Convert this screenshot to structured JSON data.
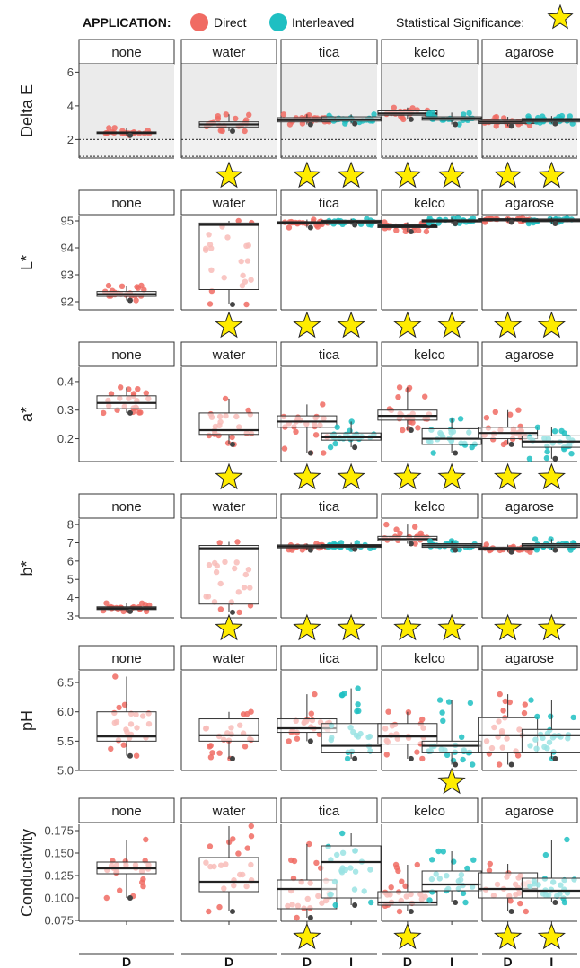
{
  "legend": {
    "title": "APPLICATION:",
    "items": [
      {
        "label": "Direct",
        "color": "#f06b63"
      },
      {
        "label": "Interleaved",
        "color": "#1fbfc2"
      }
    ],
    "significance_label": "Statistical Significance:",
    "significance_icon": "star-icon",
    "star_color": "#ffec00"
  },
  "chart_data": {
    "type": "box",
    "facets": [
      "none",
      "water",
      "tica",
      "kelco",
      "agarose"
    ],
    "x_categories": {
      "none": [
        "D"
      ],
      "water": [
        "D"
      ],
      "tica": [
        "D",
        "I"
      ],
      "kelco": [
        "D",
        "I"
      ],
      "agarose": [
        "D",
        "I"
      ]
    },
    "x_tick_labels": [
      "D",
      "D",
      "D",
      "I",
      "D",
      "I",
      "D",
      "I"
    ],
    "panels": [
      {
        "ylabel": "Delta E",
        "ylim": [
          0.9,
          6.5
        ],
        "yticks": [
          "6",
          "4",
          "2"
        ],
        "ytick_values": [
          6,
          4,
          2
        ],
        "grey_background": true,
        "reference_lines": [
          1,
          2
        ],
        "boxes": {
          "none": {
            "D": {
              "min": 2.25,
              "q1": 2.35,
              "median": 2.4,
              "q3": 2.45,
              "max": 2.7
            }
          },
          "water": {
            "D": {
              "min": 2.5,
              "q1": 2.75,
              "median": 2.9,
              "q3": 3.05,
              "max": 3.5
            }
          },
          "tica": {
            "D": {
              "min": 2.9,
              "q1": 3.05,
              "median": 3.15,
              "q3": 3.3,
              "max": 3.5
            },
            "I": {
              "min": 2.95,
              "q1": 3.1,
              "median": 3.2,
              "q3": 3.35,
              "max": 3.5
            }
          },
          "kelco": {
            "D": {
              "min": 3.2,
              "q1": 3.45,
              "median": 3.55,
              "q3": 3.7,
              "max": 3.9
            },
            "I": {
              "min": 2.9,
              "q1": 3.15,
              "median": 3.25,
              "q3": 3.35,
              "max": 3.6
            }
          },
          "agarose": {
            "D": {
              "min": 2.8,
              "q1": 2.95,
              "median": 3.05,
              "q3": 3.15,
              "max": 3.35
            },
            "I": {
              "min": 2.95,
              "q1": 3.05,
              "median": 3.15,
              "q3": 3.25,
              "max": 3.4
            }
          }
        },
        "significance": {
          "none": [],
          "water": [
            "D"
          ],
          "tica": [
            "D",
            "I"
          ],
          "kelco": [
            "D",
            "I"
          ],
          "agarose": [
            "D",
            "I"
          ]
        }
      },
      {
        "ylabel": "L*",
        "ylim": [
          91.7,
          95.2
        ],
        "yticks": [
          "95",
          "94",
          "93",
          "92"
        ],
        "ytick_values": [
          95,
          94,
          93,
          92
        ],
        "grey_background": false,
        "reference_lines": [],
        "boxes": {
          "none": {
            "D": {
              "min": 92.05,
              "q1": 92.2,
              "median": 92.28,
              "q3": 92.38,
              "max": 92.6
            }
          },
          "water": {
            "D": {
              "min": 91.9,
              "q1": 92.45,
              "median": 94.85,
              "q3": 94.92,
              "max": 95.0
            }
          },
          "tica": {
            "D": {
              "min": 94.75,
              "q1": 94.88,
              "median": 94.93,
              "q3": 94.97,
              "max": 95.05
            },
            "I": {
              "min": 94.85,
              "q1": 94.92,
              "median": 94.97,
              "q3": 95.02,
              "max": 95.08
            }
          },
          "kelco": {
            "D": {
              "min": 94.6,
              "q1": 94.75,
              "median": 94.8,
              "q3": 94.85,
              "max": 94.95
            },
            "I": {
              "min": 94.9,
              "q1": 94.96,
              "median": 95.0,
              "q3": 95.04,
              "max": 95.12
            }
          },
          "agarose": {
            "D": {
              "min": 94.95,
              "q1": 95.0,
              "median": 95.05,
              "q3": 95.08,
              "max": 95.12
            },
            "I": {
              "min": 94.9,
              "q1": 94.97,
              "median": 95.02,
              "q3": 95.07,
              "max": 95.12
            }
          }
        },
        "significance": {
          "none": [],
          "water": [
            "D"
          ],
          "tica": [
            "D",
            "I"
          ],
          "kelco": [
            "D",
            "I"
          ],
          "agarose": [
            "D",
            "I"
          ]
        }
      },
      {
        "ylabel": "a*",
        "ylim": [
          0.12,
          0.45
        ],
        "yticks": [
          "0.4",
          "0.3",
          "0.2"
        ],
        "ytick_values": [
          0.4,
          0.3,
          0.2
        ],
        "grey_background": false,
        "reference_lines": [],
        "boxes": {
          "none": {
            "D": {
              "min": 0.29,
              "q1": 0.305,
              "median": 0.325,
              "q3": 0.35,
              "max": 0.38
            }
          },
          "water": {
            "D": {
              "min": 0.18,
              "q1": 0.215,
              "median": 0.23,
              "q3": 0.29,
              "max": 0.34
            }
          },
          "tica": {
            "D": {
              "min": 0.15,
              "q1": 0.24,
              "median": 0.26,
              "q3": 0.28,
              "max": 0.32
            },
            "I": {
              "min": 0.17,
              "q1": 0.195,
              "median": 0.205,
              "q3": 0.22,
              "max": 0.26
            }
          },
          "kelco": {
            "D": {
              "min": 0.23,
              "q1": 0.265,
              "median": 0.28,
              "q3": 0.3,
              "max": 0.38
            },
            "I": {
              "min": 0.15,
              "q1": 0.18,
              "median": 0.2,
              "q3": 0.235,
              "max": 0.27
            }
          },
          "agarose": {
            "D": {
              "min": 0.18,
              "q1": 0.2,
              "median": 0.22,
              "q3": 0.24,
              "max": 0.3
            },
            "I": {
              "min": 0.13,
              "q1": 0.17,
              "median": 0.19,
              "q3": 0.21,
              "max": 0.24
            }
          }
        },
        "significance": {
          "none": [],
          "water": [
            "D"
          ],
          "tica": [
            "D",
            "I"
          ],
          "kelco": [
            "D",
            "I"
          ],
          "agarose": [
            "D",
            "I"
          ]
        }
      },
      {
        "ylabel": "b*",
        "ylim": [
          2.9,
          8.3
        ],
        "yticks": [
          "8",
          "7",
          "6",
          "5",
          "4",
          "3"
        ],
        "ytick_values": [
          8,
          7,
          6,
          5,
          4,
          3
        ],
        "grey_background": false,
        "reference_lines": [],
        "boxes": {
          "none": {
            "D": {
              "min": 3.25,
              "q1": 3.35,
              "median": 3.42,
              "q3": 3.5,
              "max": 3.7
            }
          },
          "water": {
            "D": {
              "min": 3.2,
              "q1": 3.65,
              "median": 6.7,
              "q3": 6.85,
              "max": 7.05
            }
          },
          "tica": {
            "D": {
              "min": 6.6,
              "q1": 6.72,
              "median": 6.8,
              "q3": 6.88,
              "max": 6.95
            },
            "I": {
              "min": 6.65,
              "q1": 6.75,
              "median": 6.83,
              "q3": 6.9,
              "max": 7.0
            }
          },
          "kelco": {
            "D": {
              "min": 6.95,
              "q1": 7.1,
              "median": 7.2,
              "q3": 7.35,
              "max": 8.0
            },
            "I": {
              "min": 6.6,
              "q1": 6.75,
              "median": 6.85,
              "q3": 6.95,
              "max": 7.1
            }
          },
          "agarose": {
            "D": {
              "min": 6.5,
              "q1": 6.6,
              "median": 6.68,
              "q3": 6.76,
              "max": 6.9
            },
            "I": {
              "min": 6.6,
              "q1": 6.75,
              "median": 6.85,
              "q3": 6.95,
              "max": 7.2
            }
          }
        },
        "significance": {
          "none": [],
          "water": [
            "D"
          ],
          "tica": [
            "D",
            "I"
          ],
          "kelco": [
            "D",
            "I"
          ],
          "agarose": [
            "D",
            "I"
          ]
        }
      },
      {
        "ylabel": "pH",
        "ylim": [
          5.0,
          6.7
        ],
        "yticks": [
          "6.5",
          "6.0",
          "5.5",
          "5.0"
        ],
        "ytick_values": [
          6.5,
          6.0,
          5.5,
          5.0
        ],
        "grey_background": false,
        "reference_lines": [],
        "boxes": {
          "none": {
            "D": {
              "min": 5.25,
              "q1": 5.5,
              "median": 5.58,
              "q3": 6.0,
              "max": 6.6
            }
          },
          "water": {
            "D": {
              "min": 5.2,
              "q1": 5.5,
              "median": 5.6,
              "q3": 5.88,
              "max": 6.0
            }
          },
          "tica": {
            "D": {
              "min": 5.5,
              "q1": 5.65,
              "median": 5.72,
              "q3": 5.88,
              "max": 6.3
            },
            "I": {
              "min": 5.2,
              "q1": 5.3,
              "median": 5.42,
              "q3": 5.8,
              "max": 6.4
            }
          },
          "kelco": {
            "D": {
              "min": 5.2,
              "q1": 5.45,
              "median": 5.58,
              "q3": 5.8,
              "max": 6.0
            },
            "I": {
              "min": 5.1,
              "q1": 5.3,
              "median": 5.42,
              "q3": 5.5,
              "max": 6.2
            }
          },
          "agarose": {
            "D": {
              "min": 5.1,
              "q1": 5.3,
              "median": 5.6,
              "q3": 5.9,
              "max": 6.3
            },
            "I": {
              "min": 5.2,
              "q1": 5.3,
              "median": 5.6,
              "q3": 5.7,
              "max": 6.2
            }
          }
        },
        "significance": {
          "none": [],
          "water": [],
          "tica": [],
          "kelco": [
            "I"
          ],
          "agarose": []
        }
      },
      {
        "ylabel": "Conductivity",
        "ylim": [
          0.074,
          0.182
        ],
        "yticks": [
          "0.175",
          "0.150",
          "0.125",
          "0.100",
          "0.075"
        ],
        "ytick_values": [
          0.175,
          0.15,
          0.125,
          0.1,
          0.075
        ],
        "grey_background": false,
        "reference_lines": [],
        "boxes": {
          "none": {
            "D": {
              "min": 0.1,
              "q1": 0.127,
              "median": 0.133,
              "q3": 0.14,
              "max": 0.165
            }
          },
          "water": {
            "D": {
              "min": 0.085,
              "q1": 0.107,
              "median": 0.118,
              "q3": 0.145,
              "max": 0.18
            }
          },
          "tica": {
            "D": {
              "min": 0.078,
              "q1": 0.088,
              "median": 0.11,
              "q3": 0.12,
              "max": 0.16
            },
            "I": {
              "min": 0.092,
              "q1": 0.1,
              "median": 0.14,
              "q3": 0.158,
              "max": 0.172
            }
          },
          "kelco": {
            "D": {
              "min": 0.085,
              "q1": 0.092,
              "median": 0.095,
              "q3": 0.107,
              "max": 0.137
            },
            "I": {
              "min": 0.095,
              "q1": 0.108,
              "median": 0.115,
              "q3": 0.13,
              "max": 0.152
            }
          },
          "agarose": {
            "D": {
              "min": 0.085,
              "q1": 0.1,
              "median": 0.11,
              "q3": 0.128,
              "max": 0.138
            },
            "I": {
              "min": 0.095,
              "q1": 0.1,
              "median": 0.108,
              "q3": 0.122,
              "max": 0.165
            }
          }
        },
        "significance": {
          "none": [],
          "water": [],
          "tica": [
            "D"
          ],
          "kelco": [
            "D"
          ],
          "agarose": [
            "D",
            "I"
          ]
        }
      }
    ]
  }
}
